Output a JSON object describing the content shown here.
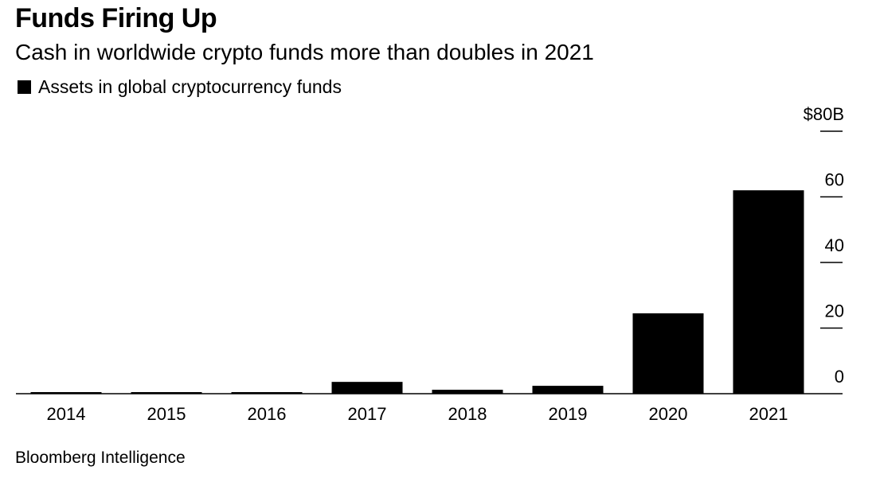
{
  "colors": {
    "bar": "#000000",
    "axis": "#000000",
    "background": "#ffffff"
  },
  "header": {
    "title": "Funds Firing Up",
    "subtitle": "Cash in worldwide crypto funds more than doubles in 2021"
  },
  "footer": {
    "source": "Bloomberg Intelligence"
  },
  "chart_data": {
    "type": "bar",
    "title": "Funds Firing Up",
    "subtitle": "Cash in worldwide crypto funds more than doubles in 2021",
    "categories": [
      "2014",
      "2015",
      "2016",
      "2017",
      "2018",
      "2019",
      "2020",
      "2021"
    ],
    "series": [
      {
        "name": "Assets in global cryptocurrency funds",
        "values": [
          0.1,
          0.1,
          0.1,
          3.6,
          1.2,
          2.4,
          24.5,
          62
        ]
      }
    ],
    "ylim": [
      0,
      80
    ],
    "yticks": [
      0,
      20,
      40,
      60,
      80
    ],
    "ytick_labels": [
      "0",
      "20",
      "40",
      "60",
      "$80B"
    ],
    "y_axis_side": "right",
    "legend": "top-left",
    "grid": false
  }
}
